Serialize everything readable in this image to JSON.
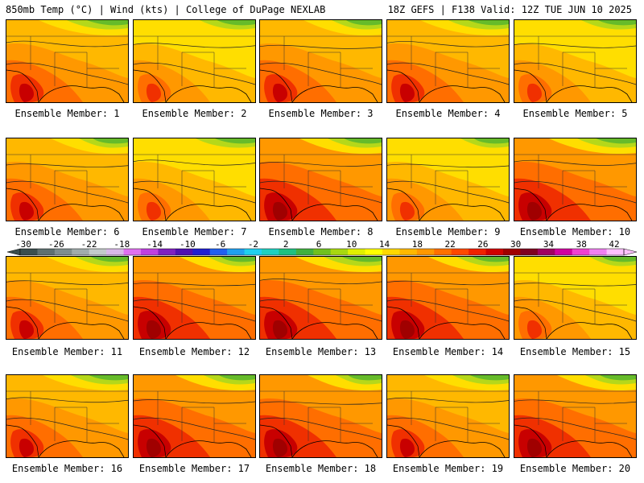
{
  "header": {
    "left": "850mb Temp (°C) | Wind (kts) | College of DuPage NEXLAB",
    "right": "18Z GEFS | F138 Valid: 12Z TUE JUN 10 2025"
  },
  "panels": [
    {
      "label": "Ensemble Member: 1",
      "palette": 0
    },
    {
      "label": "Ensemble Member: 2",
      "palette": 1
    },
    {
      "label": "Ensemble Member: 3",
      "palette": 0
    },
    {
      "label": "Ensemble Member: 4",
      "palette": 0
    },
    {
      "label": "Ensemble Member: 5",
      "palette": 1
    },
    {
      "label": "Ensemble Member: 6",
      "palette": 0
    },
    {
      "label": "Ensemble Member: 7",
      "palette": 1
    },
    {
      "label": "Ensemble Member: 8",
      "palette": 2
    },
    {
      "label": "Ensemble Member: 9",
      "palette": 1
    },
    {
      "label": "Ensemble Member: 10",
      "palette": 2
    },
    {
      "label": "Ensemble Member: 11",
      "palette": 0
    },
    {
      "label": "Ensemble Member: 12",
      "palette": 2
    },
    {
      "label": "Ensemble Member: 13",
      "palette": 2
    },
    {
      "label": "Ensemble Member: 14",
      "palette": 2
    },
    {
      "label": "Ensemble Member: 15",
      "palette": 1
    },
    {
      "label": "Ensemble Member: 16",
      "palette": 0
    },
    {
      "label": "Ensemble Member: 17",
      "palette": 2
    },
    {
      "label": "Ensemble Member: 18",
      "palette": 2
    },
    {
      "label": "Ensemble Member: 19",
      "palette": 0
    },
    {
      "label": "Ensemble Member: 20",
      "palette": 2
    }
  ],
  "colorbar": {
    "labels": [
      "-30",
      "-26",
      "-22",
      "-18",
      "-14",
      "-10",
      "-6",
      "-2",
      "2",
      "6",
      "10",
      "14",
      "18",
      "22",
      "26",
      "30",
      "34",
      "38",
      "42"
    ],
    "colors": [
      "#3a4e4e",
      "#5e7070",
      "#7e8e8e",
      "#a0acac",
      "#c2caca",
      "#d8b8e8",
      "#e070f0",
      "#c040e0",
      "#8020c0",
      "#5010b0",
      "#2020d0",
      "#2060f0",
      "#20a0f0",
      "#20d0f0",
      "#20d0c0",
      "#20c080",
      "#40b040",
      "#70c020",
      "#a8d810",
      "#e0f000",
      "#ffff00",
      "#ffd800",
      "#ffb800",
      "#ff9800",
      "#ff7000",
      "#ff4800",
      "#f02000",
      "#d00000",
      "#a00000",
      "#800020",
      "#a00060",
      "#d000a0",
      "#f040d0",
      "#f080f0",
      "#ffc0ff"
    ]
  },
  "colors": {
    "green": "#66bb2a",
    "yellowgreen": "#b5d81a",
    "yellow": "#ffde00",
    "lightorange": "#ffb800",
    "orange": "#ff9800",
    "darkorange": "#ff6e00",
    "red": "#f03000",
    "darkred": "#c80000"
  }
}
